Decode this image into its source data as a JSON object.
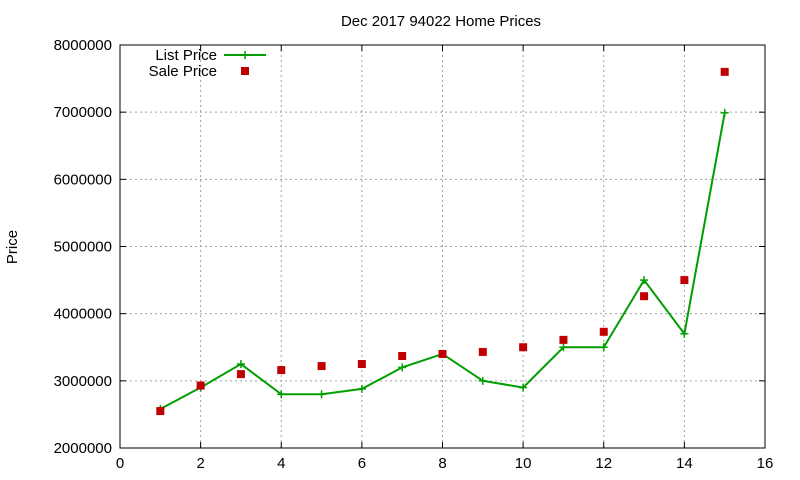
{
  "chart_data": {
    "type": "line",
    "title": "Dec 2017 94022 Home Prices",
    "xlabel": "",
    "ylabel": "Price",
    "xlim": [
      0,
      16
    ],
    "ylim": [
      2000000,
      8000000
    ],
    "x_ticks": [
      0,
      2,
      4,
      6,
      8,
      10,
      12,
      14,
      16
    ],
    "y_ticks": [
      2000000,
      3000000,
      4000000,
      5000000,
      6000000,
      7000000,
      8000000
    ],
    "grid": true,
    "legend_position": "top-left",
    "series": [
      {
        "name": "List Price",
        "style": "line-with-plus-markers",
        "color": "#009e00",
        "points": [
          [
            1,
            2580000
          ],
          [
            2,
            2900000
          ],
          [
            3,
            3250000
          ],
          [
            4,
            2800000
          ],
          [
            5,
            2800000
          ],
          [
            6,
            2880000
          ],
          [
            7,
            3200000
          ],
          [
            8,
            3400000
          ],
          [
            9,
            3000000
          ],
          [
            10,
            2900000
          ],
          [
            11,
            3500000
          ],
          [
            12,
            3500000
          ],
          [
            13,
            4500000
          ],
          [
            14,
            3700000
          ],
          [
            15,
            6990000
          ]
        ]
      },
      {
        "name": "Sale Price",
        "style": "square-markers",
        "color": "#c00000",
        "points": [
          [
            1,
            2550000
          ],
          [
            2,
            2930000
          ],
          [
            3,
            3100000
          ],
          [
            4,
            3160000
          ],
          [
            5,
            3220000
          ],
          [
            6,
            3250000
          ],
          [
            7,
            3370000
          ],
          [
            8,
            3400000
          ],
          [
            9,
            3430000
          ],
          [
            10,
            3500000
          ],
          [
            11,
            3610000
          ],
          [
            12,
            3730000
          ],
          [
            13,
            4260000
          ],
          [
            14,
            4500000
          ],
          [
            15,
            7600000
          ]
        ]
      }
    ]
  }
}
